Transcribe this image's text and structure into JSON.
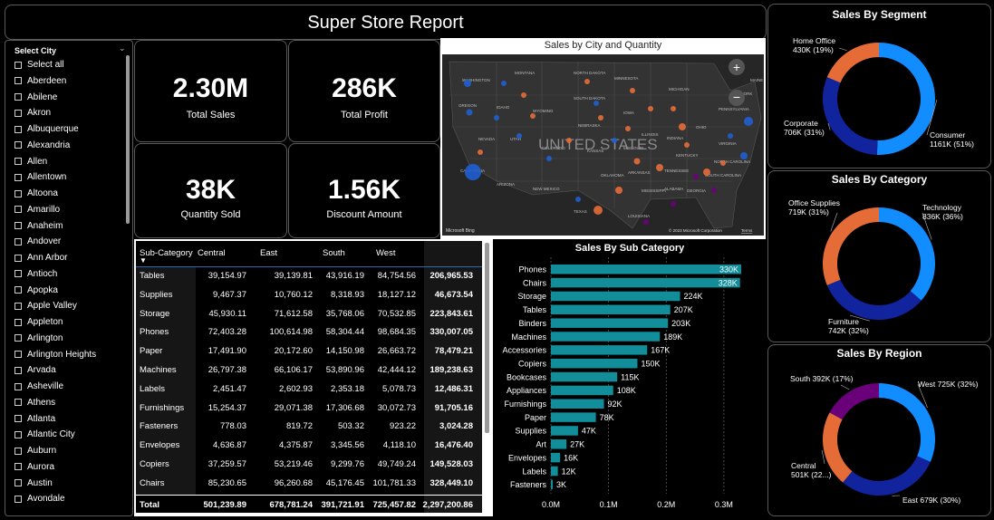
{
  "report_title": "Super Store Report",
  "slicer": {
    "title": "Select City",
    "items": [
      "Select all",
      "Aberdeen",
      "Abilene",
      "Akron",
      "Albuquerque",
      "Alexandria",
      "Allen",
      "Allentown",
      "Altoona",
      "Amarillo",
      "Anaheim",
      "Andover",
      "Ann Arbor",
      "Antioch",
      "Apopka",
      "Apple Valley",
      "Appleton",
      "Arlington",
      "Arlington Heights",
      "Arvada",
      "Asheville",
      "Athens",
      "Atlanta",
      "Atlantic City",
      "Auburn",
      "Aurora",
      "Austin",
      "Avondale"
    ]
  },
  "kpis": [
    {
      "value": "2.30M",
      "label": "Total Sales"
    },
    {
      "value": "286K",
      "label": "Total Profit"
    },
    {
      "value": "38K",
      "label": "Quantity Sold"
    },
    {
      "value": "1.56K",
      "label": "Discount Amount"
    }
  ],
  "map": {
    "title": "Sales by City and Quantity",
    "country_label": "UNITED STATES",
    "attribution": "© 2023 Microsoft Corporation",
    "terms": "Terms",
    "bing": "Microsoft Bing",
    "states": [
      "WASHINGTON",
      "MONTANA",
      "NORTH DAKOTA",
      "MINNESOTA",
      "OREGON",
      "IDAHO",
      "WYOMING",
      "SOUTH DAKOTA",
      "IOWA",
      "NEBRASKA",
      "NEVADA",
      "UTAH",
      "COLORADO",
      "KANSAS",
      "MISSOURI",
      "CALIFORNIA",
      "ARIZONA",
      "NEW MEXICO",
      "OKLAHOMA",
      "TEXAS",
      "MICHIGAN",
      "ILLINOIS",
      "INDIANA",
      "OHIO",
      "KENTUCKY",
      "TENNESSEE",
      "PENNSYLVANIA",
      "VIRGINIA",
      "NEW YORK",
      "MAINE",
      "NORTH CAROLINA",
      "GEORGIA",
      "ALABAMA",
      "MISSISSIPPI",
      "LOUISIANA",
      "ARKANSAS",
      "SOUTH CAROLINA"
    ],
    "zoom_in": "+",
    "zoom_out": "−"
  },
  "table": {
    "headers": [
      "Sub-Category",
      "Central",
      "East",
      "South",
      "West",
      "Total"
    ],
    "rows": [
      [
        "Tables",
        "39,154.97",
        "39,139.81",
        "43,916.19",
        "84,754.56",
        "206,965.53"
      ],
      [
        "Supplies",
        "9,467.37",
        "10,760.12",
        "8,318.93",
        "18,127.12",
        "46,673.54"
      ],
      [
        "Storage",
        "45,930.11",
        "71,612.58",
        "35,768.06",
        "70,532.85",
        "223,843.61"
      ],
      [
        "Phones",
        "72,403.28",
        "100,614.98",
        "58,304.44",
        "98,684.35",
        "330,007.05"
      ],
      [
        "Paper",
        "17,491.90",
        "20,172.60",
        "14,150.98",
        "26,663.72",
        "78,479.21"
      ],
      [
        "Machines",
        "26,797.38",
        "66,106.17",
        "53,890.96",
        "42,444.12",
        "189,238.63"
      ],
      [
        "Labels",
        "2,451.47",
        "2,602.93",
        "2,353.18",
        "5,078.73",
        "12,486.31"
      ],
      [
        "Furnishings",
        "15,254.37",
        "29,071.38",
        "17,306.68",
        "30,072.73",
        "91,705.16"
      ],
      [
        "Fasteners",
        "778.03",
        "819.72",
        "503.32",
        "923.22",
        "3,024.28"
      ],
      [
        "Envelopes",
        "4,636.87",
        "4,375.87",
        "3,345.56",
        "4,118.10",
        "16,476.40"
      ],
      [
        "Copiers",
        "37,259.57",
        "53,219.46",
        "9,299.76",
        "49,749.24",
        "149,528.03"
      ],
      [
        "Chairs",
        "85,230.65",
        "96,260.68",
        "45,176.45",
        "101,781.33",
        "328,449.10"
      ]
    ],
    "total_row": [
      "Total",
      "501,239.89",
      "678,781.24",
      "391,721.91",
      "725,457.82",
      "2,297,200.86"
    ]
  },
  "subcat_chart": {
    "title": "Sales By Sub Category",
    "color": "#118e9a",
    "categories": [
      "Phones",
      "Chairs",
      "Storage",
      "Tables",
      "Binders",
      "Machines",
      "Accessories",
      "Copiers",
      "Bookcases",
      "Appliances",
      "Furnishings",
      "Paper",
      "Supplies",
      "Art",
      "Envelopes",
      "Labels",
      "Fasteners"
    ],
    "values": [
      330,
      328,
      224,
      207,
      203,
      189,
      167,
      150,
      115,
      108,
      92,
      78,
      47,
      27,
      16,
      12,
      3
    ],
    "labels": [
      "330K",
      "328K",
      "224K",
      "207K",
      "203K",
      "189K",
      "167K",
      "150K",
      "115K",
      "108K",
      "92K",
      "78K",
      "47K",
      "27K",
      "16K",
      "12K",
      "3K"
    ],
    "ticks": [
      "0.0M",
      "0.1M",
      "0.2M",
      "0.3M"
    ]
  },
  "chart_data": [
    {
      "type": "bar",
      "title": "Sales By Sub Category",
      "categories": [
        "Phones",
        "Chairs",
        "Storage",
        "Tables",
        "Binders",
        "Machines",
        "Accessories",
        "Copiers",
        "Bookcases",
        "Appliances",
        "Furnishings",
        "Paper",
        "Supplies",
        "Art",
        "Envelopes",
        "Labels",
        "Fasteners"
      ],
      "values": [
        330,
        328,
        224,
        207,
        203,
        189,
        167,
        150,
        115,
        108,
        92,
        78,
        47,
        27,
        16,
        12,
        3
      ],
      "xlim": [
        0,
        0.33
      ]
    },
    {
      "type": "pie",
      "title": "Sales By Segment",
      "categories": [
        "Consumer",
        "Corporate",
        "Home Office"
      ],
      "values": [
        1161,
        706,
        430
      ]
    },
    {
      "type": "pie",
      "title": "Sales By Category",
      "categories": [
        "Technology",
        "Furniture",
        "Office Supplies"
      ],
      "values": [
        836,
        742,
        719
      ]
    },
    {
      "type": "pie",
      "title": "Sales By Region",
      "categories": [
        "West",
        "East",
        "Central",
        "South"
      ],
      "values": [
        725,
        679,
        501,
        392
      ]
    }
  ],
  "donuts": [
    {
      "title": "Sales By Segment",
      "slices": [
        {
          "name": "Consumer",
          "value": 1161,
          "color": "#118dff",
          "l1": "Consumer",
          "l2": "1161K (51%)"
        },
        {
          "name": "Corporate",
          "value": 706,
          "color": "#12239e",
          "l1": "Corporate",
          "l2": "706K (31%)"
        },
        {
          "name": "Home Office",
          "value": 430,
          "color": "#e66c37",
          "l1": "Home Office",
          "l2": "430K (19%)"
        }
      ]
    },
    {
      "title": "Sales By Category",
      "slices": [
        {
          "name": "Technology",
          "value": 836,
          "color": "#118dff",
          "l1": "Technology",
          "l2": "836K (36%)"
        },
        {
          "name": "Furniture",
          "value": 742,
          "color": "#12239e",
          "l1": "Furniture",
          "l2": "742K (32%)"
        },
        {
          "name": "Office Supplies",
          "value": 719,
          "color": "#e66c37",
          "l1": "Office Supplies",
          "l2": "719K (31%)"
        }
      ]
    },
    {
      "title": "Sales By Region",
      "slices": [
        {
          "name": "West",
          "value": 725,
          "color": "#118dff",
          "l1": "West 725K (32%)",
          "l2": ""
        },
        {
          "name": "East",
          "value": 679,
          "color": "#12239e",
          "l1": "East 679K (30%)",
          "l2": ""
        },
        {
          "name": "Central",
          "value": 501,
          "color": "#e66c37",
          "l1": "Central",
          "l2": "501K (22...)"
        },
        {
          "name": "South",
          "value": 392,
          "color": "#6b007b",
          "l1": "South 392K (17%)",
          "l2": ""
        }
      ]
    }
  ]
}
